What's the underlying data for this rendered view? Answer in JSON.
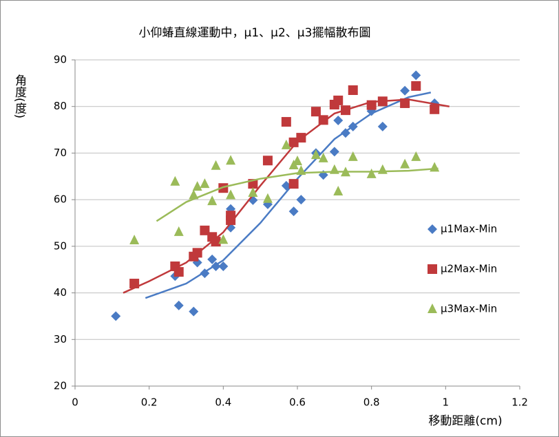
{
  "chart_data": {
    "type": "scatter",
    "title": "小仰蝽直線運動中，μ1、μ2、μ3擺幅散布圖",
    "x_label": "移動距離(cm)",
    "y_label": "角度(度)",
    "xlim": [
      0,
      1.2
    ],
    "xticks": [
      0,
      0.2,
      0.4,
      0.6,
      0.8,
      1,
      1.2
    ],
    "ylim": [
      20,
      90
    ],
    "yticks": [
      20,
      30,
      40,
      50,
      60,
      70,
      80,
      90
    ],
    "grid": true,
    "legend": "right",
    "series": [
      {
        "name": "μ1Max-Min",
        "color": "#4a7bc4",
        "marker": "diamond",
        "x": [
          0.11,
          0.27,
          0.28,
          0.32,
          0.33,
          0.35,
          0.37,
          0.38,
          0.4,
          0.42,
          0.42,
          0.48,
          0.52,
          0.57,
          0.59,
          0.61,
          0.65,
          0.67,
          0.7,
          0.71,
          0.73,
          0.75,
          0.8,
          0.83,
          0.89,
          0.92,
          0.97
        ],
        "values": [
          35,
          43.6,
          37.3,
          36,
          46.5,
          44.2,
          47.2,
          45.7,
          45.7,
          58,
          54,
          59.9,
          59,
          63,
          57.5,
          60,
          70,
          65.3,
          70.3,
          77,
          74.3,
          75.7,
          79,
          75.7,
          83.4,
          86.7,
          80.7
        ],
        "trend_x": [
          0.19,
          0.3,
          0.4,
          0.5,
          0.6,
          0.7,
          0.8,
          0.9,
          0.96
        ],
        "trend_y": [
          38.9,
          42,
          47,
          55,
          64.5,
          73,
          78.5,
          82,
          83
        ]
      },
      {
        "name": "μ2Max-Min",
        "color": "#c0393b",
        "marker": "square",
        "x": [
          0.16,
          0.27,
          0.28,
          0.32,
          0.33,
          0.35,
          0.37,
          0.38,
          0.4,
          0.42,
          0.42,
          0.48,
          0.52,
          0.57,
          0.59,
          0.59,
          0.61,
          0.65,
          0.67,
          0.7,
          0.71,
          0.73,
          0.75,
          0.8,
          0.83,
          0.89,
          0.92,
          0.97
        ],
        "values": [
          42,
          45.7,
          44.5,
          47.8,
          48.6,
          53.4,
          52,
          51,
          62.5,
          55.6,
          56.6,
          63.4,
          68.4,
          76.7,
          72.3,
          63.4,
          73.3,
          78.9,
          77.1,
          80.4,
          81.3,
          79.2,
          83.5,
          80.3,
          81.1,
          80.7,
          84.4,
          79.4
        ],
        "trend_x": [
          0.13,
          0.2,
          0.3,
          0.4,
          0.5,
          0.6,
          0.7,
          0.8,
          0.9,
          1.01
        ],
        "trend_y": [
          40,
          42.5,
          46.5,
          53,
          63,
          72.5,
          78.5,
          81,
          81.5,
          80
        ]
      },
      {
        "name": "μ3Max-Min",
        "color": "#9bbb59",
        "marker": "triangle",
        "x": [
          0.16,
          0.27,
          0.28,
          0.32,
          0.33,
          0.35,
          0.37,
          0.38,
          0.4,
          0.42,
          0.42,
          0.48,
          0.52,
          0.57,
          0.59,
          0.6,
          0.61,
          0.65,
          0.67,
          0.7,
          0.71,
          0.73,
          0.75,
          0.8,
          0.83,
          0.89,
          0.92,
          0.97
        ],
        "values": [
          51.3,
          63.9,
          53.1,
          61,
          62.8,
          63.4,
          59.7,
          67.3,
          51.4,
          68.4,
          61,
          61.5,
          60.2,
          71.7,
          67.4,
          68.3,
          66.2,
          69.6,
          68.9,
          66.4,
          61.8,
          65.9,
          69.2,
          65.5,
          66.4,
          67.6,
          69.2,
          66.9
        ],
        "trend_x": [
          0.22,
          0.3,
          0.4,
          0.5,
          0.6,
          0.7,
          0.8,
          0.9,
          0.98
        ],
        "trend_y": [
          55.4,
          59.5,
          62.7,
          64.5,
          65.7,
          66,
          66,
          66.2,
          66.7
        ]
      }
    ]
  }
}
